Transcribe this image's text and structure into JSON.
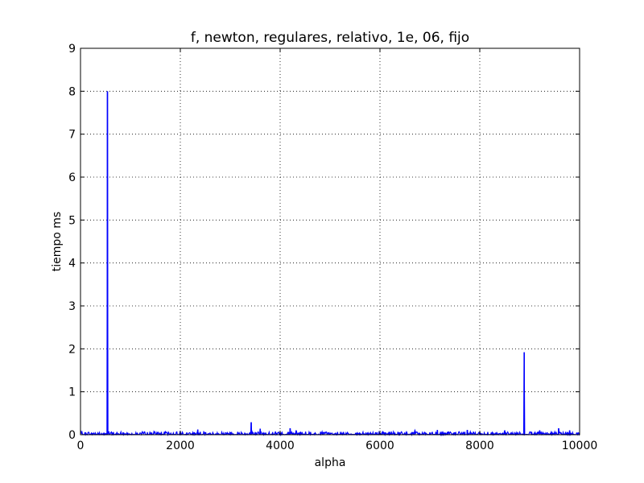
{
  "chart_data": {
    "type": "line",
    "title": "f, newton, regulares, relativo, 1e, 06, fijo",
    "xlabel": "alpha",
    "ylabel": "tiempo ms",
    "xlim": [
      0,
      10000
    ],
    "ylim": [
      0,
      9
    ],
    "xticks": [
      0,
      2000,
      4000,
      6000,
      8000,
      10000
    ],
    "yticks": [
      0,
      1,
      2,
      3,
      4,
      5,
      6,
      7,
      8,
      9
    ],
    "grid": true,
    "line_color": "#0000ff",
    "baseline": {
      "x_start": 0,
      "x_end": 10000,
      "x_step": 10,
      "min": 0,
      "max": 0.07,
      "description_points": "noise band of values between 0 and about 0.07 ms"
    },
    "spikes": [
      {
        "x": 540,
        "y": 8.0
      },
      {
        "x": 2350,
        "y": 0.12
      },
      {
        "x": 3420,
        "y": 0.29
      },
      {
        "x": 3600,
        "y": 0.14
      },
      {
        "x": 4200,
        "y": 0.15
      },
      {
        "x": 4320,
        "y": 0.1
      },
      {
        "x": 6700,
        "y": 0.1
      },
      {
        "x": 7150,
        "y": 0.11
      },
      {
        "x": 7750,
        "y": 0.11
      },
      {
        "x": 8500,
        "y": 0.1
      },
      {
        "x": 8890,
        "y": 1.92
      },
      {
        "x": 9200,
        "y": 0.1
      },
      {
        "x": 9580,
        "y": 0.15
      },
      {
        "x": 9800,
        "y": 0.1
      }
    ]
  }
}
